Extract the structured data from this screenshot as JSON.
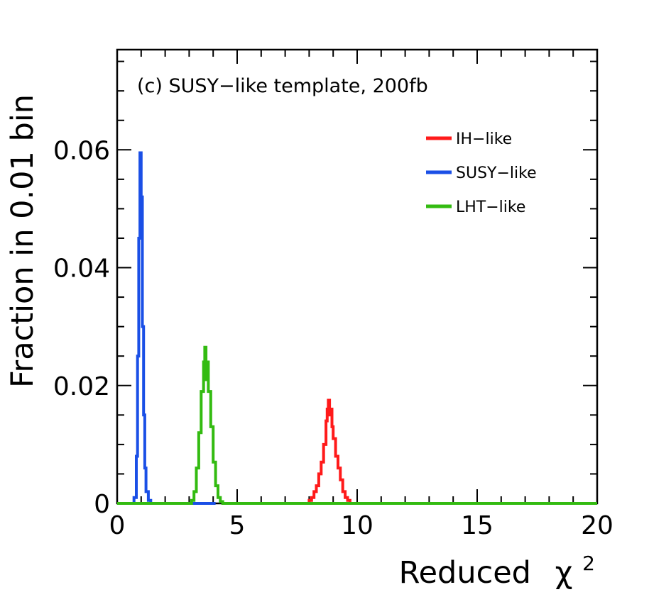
{
  "chart_data": {
    "type": "histogram",
    "title": "",
    "annotation": "(c) SUSY−like template, 200fb",
    "xlabel": "Reduced",
    "xlabel_symbol": "χ",
    "xlabel_superscript": "2",
    "ylabel": "Fraction in 0.01 bin",
    "xlim": [
      0,
      20
    ],
    "ylim": [
      0,
      0.077
    ],
    "x_ticks": [
      0,
      5,
      10,
      15,
      20
    ],
    "x_tick_labels": [
      "0",
      "5",
      "10",
      "15",
      "20"
    ],
    "y_ticks": [
      0,
      0.02,
      0.04,
      0.06
    ],
    "y_tick_labels": [
      "0",
      "0.02",
      "0.04",
      "0.06"
    ],
    "legend_position": "top-right",
    "series": [
      {
        "name": "IH−like",
        "color": "#ff1a1a",
        "x": [
          7.9,
          8.0,
          8.1,
          8.2,
          8.3,
          8.4,
          8.5,
          8.6,
          8.7,
          8.75,
          8.8,
          8.85,
          8.9,
          8.95,
          9.0,
          9.1,
          9.2,
          9.3,
          9.4,
          9.5,
          9.6,
          9.7
        ],
        "y": [
          0,
          0.0005,
          0.001,
          0.002,
          0.003,
          0.005,
          0.007,
          0.01,
          0.014,
          0.016,
          0.0175,
          0.015,
          0.016,
          0.013,
          0.011,
          0.008,
          0.006,
          0.004,
          0.002,
          0.001,
          0.0005,
          0
        ]
      },
      {
        "name": "SUSY−like",
        "color": "#1a4fe6",
        "x": [
          0.6,
          0.7,
          0.8,
          0.85,
          0.9,
          0.95,
          1.0,
          1.05,
          1.1,
          1.15,
          1.2,
          1.3,
          1.4,
          3.5,
          4.1
        ],
        "y": [
          0,
          0.001,
          0.008,
          0.025,
          0.045,
          0.0595,
          0.052,
          0.03,
          0.015,
          0.006,
          0.002,
          0.0005,
          0,
          0,
          0
        ]
      },
      {
        "name": "LHT−like",
        "color": "#33bb11",
        "x": [
          0,
          3.0,
          3.1,
          3.2,
          3.3,
          3.4,
          3.5,
          3.6,
          3.65,
          3.7,
          3.75,
          3.8,
          3.9,
          4.0,
          4.1,
          4.2,
          4.3,
          4.4,
          20
        ],
        "y": [
          0,
          0,
          0.0005,
          0.002,
          0.006,
          0.012,
          0.019,
          0.024,
          0.0265,
          0.021,
          0.024,
          0.019,
          0.013,
          0.007,
          0.003,
          0.001,
          0.0003,
          0,
          0
        ]
      }
    ]
  }
}
